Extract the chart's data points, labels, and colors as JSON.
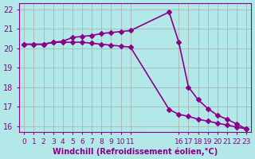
{
  "xlabel": "Windchill (Refroidissement éolien,°C)",
  "ylabel": "",
  "background_color": "#b2e8e8",
  "grid_color": "#aaaaaa",
  "line_color": "#8b008b",
  "xtick_positions": [
    0,
    1,
    2,
    3,
    4,
    5,
    6,
    7,
    8,
    9,
    10,
    11,
    16,
    17,
    18,
    19,
    20,
    21,
    22,
    23
  ],
  "xtick_labels": [
    "0",
    "1",
    "2",
    "3",
    "4",
    "5",
    "6",
    "7",
    "8",
    "9",
    "10",
    "11",
    "16",
    "17",
    "18",
    "19",
    "20",
    "21",
    "22",
    "23"
  ],
  "yticks": [
    16,
    17,
    18,
    19,
    20,
    21,
    22
  ],
  "xlim": [
    -0.5,
    23.5
  ],
  "ylim": [
    15.7,
    22.3
  ],
  "line1_x": [
    0,
    1,
    2,
    3,
    4,
    5,
    6,
    7,
    8,
    9,
    10,
    11,
    15,
    16,
    17,
    18,
    19,
    20,
    21,
    22,
    23
  ],
  "line1_y": [
    20.2,
    20.2,
    20.2,
    20.3,
    20.35,
    20.55,
    20.6,
    20.65,
    20.75,
    20.8,
    20.85,
    20.9,
    21.85,
    20.3,
    18.0,
    17.35,
    16.9,
    16.55,
    16.35,
    16.1,
    15.85
  ],
  "line2_x": [
    0,
    1,
    2,
    3,
    4,
    5,
    6,
    7,
    8,
    9,
    10,
    11,
    15,
    16,
    17,
    18,
    19,
    20,
    21,
    22,
    23
  ],
  "line2_y": [
    20.2,
    20.2,
    20.2,
    20.3,
    20.3,
    20.3,
    20.3,
    20.25,
    20.2,
    20.15,
    20.1,
    20.05,
    16.85,
    16.6,
    16.5,
    16.35,
    16.25,
    16.15,
    16.05,
    15.95,
    15.85
  ],
  "marker": "D",
  "markersize": 3,
  "linewidth": 1.2,
  "fontsize_xlabel": 7,
  "fontsize_yticks": 7,
  "fontsize_xticks": 6.5
}
